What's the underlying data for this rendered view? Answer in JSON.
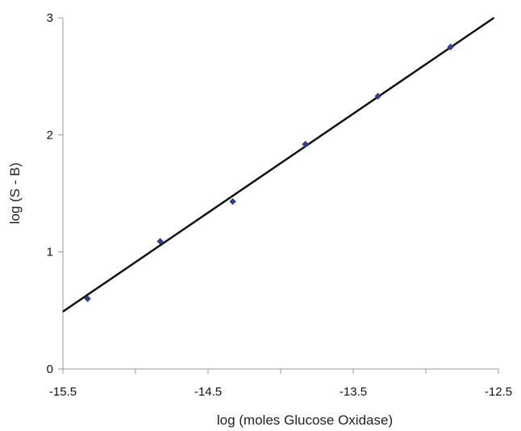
{
  "chart_data": {
    "type": "scatter",
    "title": "",
    "xlabel": "log (moles Glucose Oxidase)",
    "ylabel": "log (S - B)",
    "xlim": [
      -15.5,
      -12.5
    ],
    "ylim": [
      0,
      3
    ],
    "x_ticks": [
      -15.5,
      -15,
      -14.5,
      -14,
      -13.5,
      -13,
      -12.5
    ],
    "x_tick_labels": [
      "-15.5",
      "",
      "-14.5",
      "",
      "-13.5",
      "",
      "-12.5"
    ],
    "y_ticks": [
      0,
      1,
      2,
      3
    ],
    "y_tick_labels": [
      "0",
      "1",
      "2",
      "3"
    ],
    "grid": false,
    "series": [
      {
        "points": [
          {
            "x": -15.33,
            "y": 0.6
          },
          {
            "x": -14.83,
            "y": 1.09
          },
          {
            "x": -14.33,
            "y": 1.43
          },
          {
            "x": -13.83,
            "y": 1.92
          },
          {
            "x": -13.33,
            "y": 2.33
          },
          {
            "x": -12.83,
            "y": 2.75
          }
        ],
        "color": "#2e3f8f",
        "marker": "diamond"
      }
    ],
    "trendline": {
      "type": "linear",
      "x_start": -15.5,
      "y_start": 0.49,
      "x_end": -12.53,
      "y_end": 3.0,
      "color": "#111111"
    }
  }
}
